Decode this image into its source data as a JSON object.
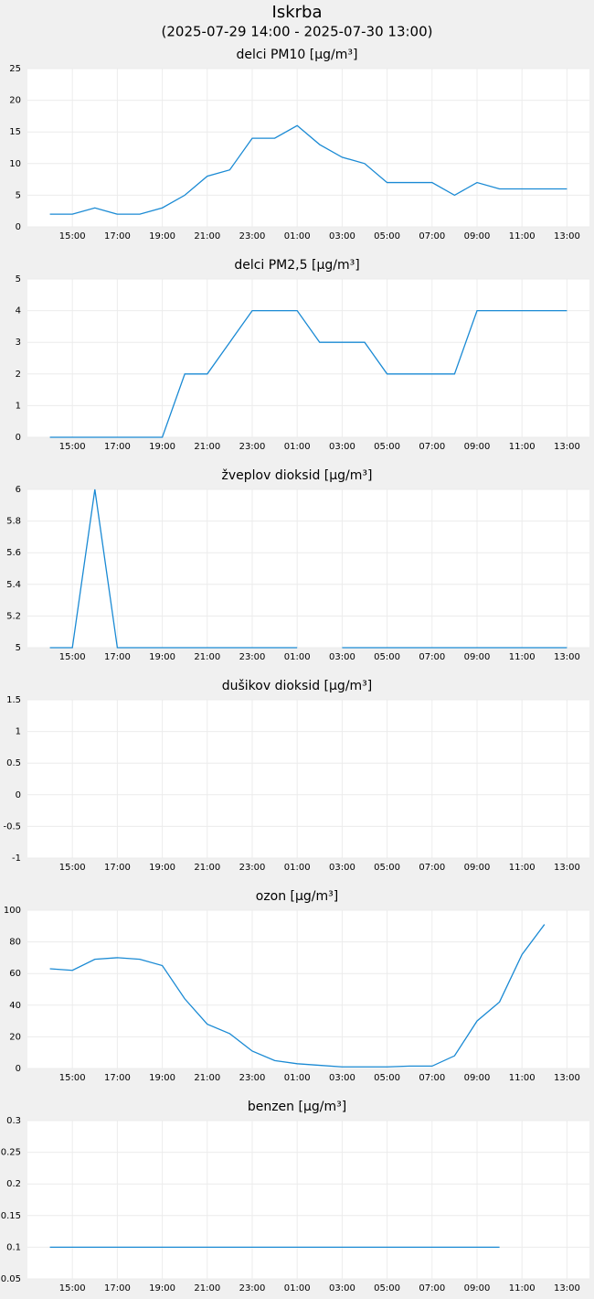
{
  "header": {
    "title": "Iskrba",
    "subtitle": "(2025-07-29 14:00 - 2025-07-30 13:00)"
  },
  "chart_data": [
    {
      "type": "line",
      "title": "delci PM10 [µg/m³]",
      "categories": [
        null,
        "15:00",
        null,
        "17:00",
        null,
        "19:00",
        null,
        "21:00",
        null,
        "23:00",
        null,
        "01:00",
        null,
        "03:00",
        null,
        "05:00",
        null,
        "07:00",
        null,
        "09:00",
        null,
        "11:00",
        null,
        "13:00"
      ],
      "series": [
        {
          "color": "#1a8ad4",
          "values": [
            2,
            2,
            3,
            2,
            2,
            3,
            5,
            8,
            9,
            14,
            14,
            16,
            13,
            11,
            10,
            7,
            7,
            7,
            5,
            7,
            6,
            6,
            6,
            6
          ]
        }
      ],
      "ylim": [
        0,
        25
      ],
      "yticks": [
        0,
        5,
        10,
        15,
        20,
        25
      ],
      "grid": true
    },
    {
      "type": "line",
      "title": "delci PM2,5 [µg/m³]",
      "categories": [
        null,
        "15:00",
        null,
        "17:00",
        null,
        "19:00",
        null,
        "21:00",
        null,
        "23:00",
        null,
        "01:00",
        null,
        "03:00",
        null,
        "05:00",
        null,
        "07:00",
        null,
        "09:00",
        null,
        "11:00",
        null,
        "13:00"
      ],
      "series": [
        {
          "color": "#1a8ad4",
          "values": [
            0,
            0,
            0,
            0,
            0,
            0,
            2,
            2,
            3,
            4,
            4,
            4,
            3,
            3,
            3,
            2,
            2,
            2,
            2,
            4,
            4,
            4,
            4,
            4
          ]
        }
      ],
      "ylim": [
        0,
        5
      ],
      "yticks": [
        0,
        1,
        2,
        3,
        4,
        5
      ],
      "grid": true
    },
    {
      "type": "line",
      "title": "žveplov dioksid [µg/m³]",
      "categories": [
        null,
        "15:00",
        null,
        "17:00",
        null,
        "19:00",
        null,
        "21:00",
        null,
        "23:00",
        null,
        "01:00",
        null,
        "03:00",
        null,
        "05:00",
        null,
        "07:00",
        null,
        "09:00",
        null,
        "11:00",
        null,
        "13:00"
      ],
      "series": [
        {
          "color": "#1a8ad4",
          "values": [
            5,
            5,
            6,
            5,
            5,
            5,
            5,
            5,
            5,
            5,
            5,
            5,
            null,
            5,
            5,
            5,
            5,
            5,
            5,
            5,
            5,
            5,
            5,
            5
          ]
        }
      ],
      "ylim": [
        5,
        6
      ],
      "yticks": [
        5,
        5.2,
        5.4,
        5.6,
        5.8,
        6
      ],
      "grid": true
    },
    {
      "type": "line",
      "title": "dušikov dioksid [µg/m³]",
      "categories": [
        null,
        "15:00",
        null,
        "17:00",
        null,
        "19:00",
        null,
        "21:00",
        null,
        "23:00",
        null,
        "01:00",
        null,
        "03:00",
        null,
        "05:00",
        null,
        "07:00",
        null,
        "09:00",
        null,
        "11:00",
        null,
        "13:00"
      ],
      "series": [
        {
          "color": "#1a8ad4",
          "values": [
            null,
            null,
            null,
            null,
            null,
            null,
            null,
            null,
            null,
            null,
            null,
            null,
            null,
            null,
            null,
            null,
            null,
            null,
            null,
            null,
            null,
            null,
            null,
            null
          ]
        }
      ],
      "ylim": [
        -1,
        1.5
      ],
      "yticks": [
        -1,
        -0.5,
        0,
        0.5,
        1,
        1.5
      ],
      "grid": true
    },
    {
      "type": "line",
      "title": "ozon [µg/m³]",
      "categories": [
        null,
        "15:00",
        null,
        "17:00",
        null,
        "19:00",
        null,
        "21:00",
        null,
        "23:00",
        null,
        "01:00",
        null,
        "03:00",
        null,
        "05:00",
        null,
        "07:00",
        null,
        "09:00",
        null,
        "11:00",
        null,
        "13:00"
      ],
      "series": [
        {
          "color": "#1a8ad4",
          "values": [
            63,
            62,
            69,
            70,
            69,
            65,
            44,
            28,
            22,
            11,
            5,
            3,
            2,
            1,
            1,
            1,
            1.5,
            1.5,
            8,
            30,
            42,
            72,
            91,
            null
          ]
        }
      ],
      "ylim": [
        0,
        100
      ],
      "yticks": [
        0,
        20,
        40,
        60,
        80,
        100
      ],
      "grid": true
    },
    {
      "type": "line",
      "title": "benzen [µg/m³]",
      "categories": [
        null,
        "15:00",
        null,
        "17:00",
        null,
        "19:00",
        null,
        "21:00",
        null,
        "23:00",
        null,
        "01:00",
        null,
        "03:00",
        null,
        "05:00",
        null,
        "07:00",
        null,
        "09:00",
        null,
        "11:00",
        null,
        "13:00"
      ],
      "series": [
        {
          "color": "#1a8ad4",
          "values": [
            0.1,
            0.1,
            0.1,
            0.1,
            0.1,
            0.1,
            0.1,
            0.1,
            0.1,
            0.1,
            0.1,
            0.1,
            0.1,
            0.1,
            0.1,
            0.1,
            0.1,
            0.1,
            0.1,
            0.1,
            0.1,
            null,
            null,
            null
          ]
        }
      ],
      "ylim": [
        0.05,
        0.3
      ],
      "yticks": [
        0.05,
        0.1,
        0.15,
        0.2,
        0.25,
        0.3
      ],
      "grid": true
    }
  ]
}
